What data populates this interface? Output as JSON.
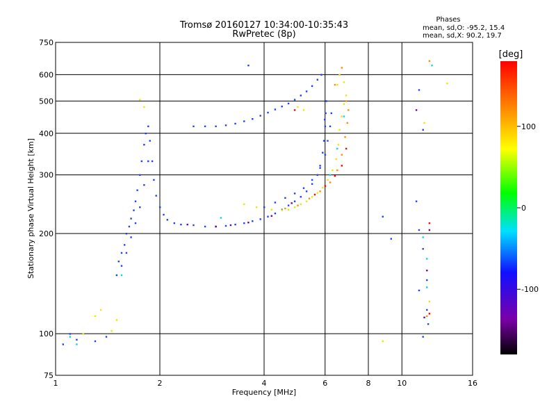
{
  "chart_data": {
    "type": "scatter",
    "title": "Tromsø 20160127 10:34:00-10:35:43",
    "subtitle": "RwPretec (8p)",
    "xlabel": "Frequency [MHz]",
    "ylabel": "Stationary phase Virtual Height [km]",
    "x_scale": "log",
    "y_scale": "log",
    "xlim": [
      1,
      16
    ],
    "ylim": [
      75,
      750
    ],
    "x_ticks": [
      1,
      2,
      4,
      6,
      8,
      10,
      16
    ],
    "y_ticks": [
      75,
      100,
      200,
      300,
      400,
      500,
      600,
      750
    ],
    "x_gridlines": [
      2,
      4,
      6,
      8,
      10
    ],
    "y_gridlines": [
      100,
      200,
      300,
      400,
      500,
      600
    ],
    "grid": true,
    "stats": {
      "header": "Phases",
      "line_o": "mean, sd,O: -95.2, 15.4",
      "line_x": "mean, sd,X: 90.2, 19.7"
    },
    "colorbar": {
      "label": "[deg]",
      "range": [
        -180,
        180
      ],
      "ticks": [
        100,
        0,
        -100
      ],
      "colormap": [
        "#000000",
        "#7a00a8",
        "#1010ff",
        "#00e0ff",
        "#00ff00",
        "#ffff00",
        "#ff8000",
        "#ff0000"
      ]
    },
    "series": [
      {
        "mode": "O",
        "color": "#1f3fff",
        "points": [
          [
            1.05,
            93
          ],
          [
            1.1,
            100
          ],
          [
            1.15,
            96
          ],
          [
            1.3,
            95
          ],
          [
            1.4,
            98
          ],
          [
            1.5,
            150
          ],
          [
            1.52,
            165
          ],
          [
            1.55,
            175
          ],
          [
            1.58,
            185
          ],
          [
            1.6,
            200
          ],
          [
            1.63,
            210
          ],
          [
            1.65,
            222
          ],
          [
            1.68,
            235
          ],
          [
            1.7,
            250
          ],
          [
            1.72,
            270
          ],
          [
            1.75,
            300
          ],
          [
            1.77,
            330
          ],
          [
            1.8,
            370
          ],
          [
            1.82,
            400
          ],
          [
            1.85,
            420
          ],
          [
            1.87,
            380
          ],
          [
            1.9,
            330
          ],
          [
            1.92,
            290
          ],
          [
            1.95,
            260
          ],
          [
            2.0,
            240
          ],
          [
            2.05,
            228
          ],
          [
            1.55,
            160
          ],
          [
            1.6,
            175
          ],
          [
            1.65,
            195
          ],
          [
            1.7,
            215
          ],
          [
            1.75,
            240
          ],
          [
            1.8,
            280
          ],
          [
            1.85,
            330
          ],
          [
            2.1,
            220
          ],
          [
            2.2,
            215
          ],
          [
            2.3,
            213
          ],
          [
            2.5,
            212
          ],
          [
            2.7,
            210
          ],
          [
            2.9,
            210
          ],
          [
            3.1,
            211
          ],
          [
            3.3,
            213
          ],
          [
            3.5,
            215
          ],
          [
            3.7,
            218
          ],
          [
            3.9,
            221
          ],
          [
            4.1,
            225
          ],
          [
            4.3,
            230
          ],
          [
            4.5,
            236
          ],
          [
            4.7,
            243
          ],
          [
            4.9,
            250
          ],
          [
            5.1,
            258
          ],
          [
            5.3,
            268
          ],
          [
            5.5,
            282
          ],
          [
            5.7,
            300
          ],
          [
            5.8,
            320
          ],
          [
            5.9,
            350
          ],
          [
            5.95,
            380
          ],
          [
            6.0,
            420
          ],
          [
            6.02,
            460
          ],
          [
            6.05,
            500
          ],
          [
            5.98,
            440
          ],
          [
            2.5,
            420
          ],
          [
            2.7,
            420
          ],
          [
            2.9,
            420
          ],
          [
            3.1,
            423
          ],
          [
            3.3,
            428
          ],
          [
            3.5,
            435
          ],
          [
            3.7,
            442
          ],
          [
            3.9,
            452
          ],
          [
            4.1,
            462
          ],
          [
            4.3,
            472
          ],
          [
            4.5,
            482
          ],
          [
            4.7,
            492
          ],
          [
            4.9,
            505
          ],
          [
            5.1,
            520
          ],
          [
            5.3,
            535
          ],
          [
            5.5,
            555
          ],
          [
            5.7,
            580
          ],
          [
            5.85,
            600
          ],
          [
            4.0,
            240
          ],
          [
            4.3,
            248
          ],
          [
            4.6,
            256
          ],
          [
            4.9,
            264
          ],
          [
            5.2,
            274
          ],
          [
            5.5,
            290
          ],
          [
            5.8,
            315
          ],
          [
            6.0,
            345
          ],
          [
            6.1,
            380
          ],
          [
            6.2,
            420
          ],
          [
            6.25,
            460
          ],
          [
            3.6,
            640
          ],
          [
            8.8,
            225
          ],
          [
            9.3,
            193
          ],
          [
            11.2,
            540
          ],
          [
            11.5,
            410
          ],
          [
            11.0,
            250
          ],
          [
            11.2,
            205
          ],
          [
            11.5,
            180
          ],
          [
            11.8,
            145
          ],
          [
            11.2,
            135
          ],
          [
            11.8,
            118
          ],
          [
            11.9,
            107
          ],
          [
            11.5,
            98
          ]
        ]
      },
      {
        "mode": "O-dark",
        "color": "#6a00b0",
        "points": [
          [
            2.4,
            213
          ],
          [
            2.9,
            210
          ],
          [
            3.2,
            212
          ],
          [
            3.6,
            216
          ],
          [
            4.2,
            226
          ],
          [
            4.8,
            247
          ],
          [
            11.0,
            470
          ],
          [
            11.8,
            155
          ],
          [
            11.6,
            112
          ],
          [
            12.0,
            205
          ]
        ]
      },
      {
        "mode": "X",
        "color": "#e8e800",
        "points": [
          [
            1.75,
            505
          ],
          [
            1.8,
            480
          ],
          [
            1.3,
            113
          ],
          [
            1.35,
            118
          ],
          [
            1.45,
            102
          ],
          [
            1.5,
            110
          ],
          [
            1.2,
            100
          ],
          [
            3.5,
            245
          ],
          [
            3.8,
            240
          ],
          [
            4.2,
            236
          ],
          [
            4.5,
            235
          ],
          [
            4.7,
            236
          ],
          [
            4.9,
            240
          ],
          [
            5.1,
            245
          ],
          [
            5.3,
            250
          ],
          [
            5.5,
            258
          ],
          [
            5.7,
            265
          ],
          [
            5.9,
            275
          ],
          [
            6.1,
            290
          ],
          [
            6.3,
            310
          ],
          [
            6.45,
            335
          ],
          [
            6.55,
            370
          ],
          [
            6.6,
            410
          ],
          [
            6.7,
            450
          ],
          [
            6.8,
            490
          ],
          [
            6.9,
            520
          ],
          [
            5.0,
            480
          ],
          [
            5.2,
            470
          ],
          [
            6.5,
            560
          ],
          [
            6.8,
            570
          ],
          [
            6.6,
            600
          ],
          [
            8.8,
            95
          ],
          [
            11.6,
            430
          ],
          [
            12.0,
            125
          ],
          [
            13.5,
            565
          ]
        ]
      },
      {
        "mode": "X-orange",
        "color": "#ff8c00",
        "points": [
          [
            4.6,
            238
          ],
          [
            5.0,
            243
          ],
          [
            5.4,
            255
          ],
          [
            5.8,
            268
          ],
          [
            6.2,
            285
          ],
          [
            6.5,
            310
          ],
          [
            6.7,
            345
          ],
          [
            6.85,
            390
          ],
          [
            6.95,
            430
          ],
          [
            7.0,
            470
          ],
          [
            6.9,
            500
          ],
          [
            6.4,
            560
          ],
          [
            6.7,
            630
          ],
          [
            12.0,
            660
          ],
          [
            11.8,
            113
          ]
        ]
      },
      {
        "mode": "X-red",
        "color": "#ff0000",
        "points": [
          [
            5.6,
            262
          ],
          [
            6.0,
            278
          ],
          [
            6.4,
            298
          ],
          [
            6.7,
            320
          ],
          [
            6.9,
            360
          ],
          [
            4.9,
            470
          ],
          [
            12.0,
            215
          ],
          [
            12.0,
            115
          ]
        ]
      },
      {
        "mode": "green-cyan",
        "color": "#00d8e8",
        "points": [
          [
            1.55,
            150
          ],
          [
            1.1,
            98
          ],
          [
            1.15,
            93
          ],
          [
            3.0,
            223
          ],
          [
            6.2,
            300
          ],
          [
            6.5,
            360
          ],
          [
            6.8,
            450
          ],
          [
            12.2,
            640
          ],
          [
            11.5,
            195
          ],
          [
            11.8,
            138
          ],
          [
            11.8,
            168
          ]
        ]
      }
    ]
  }
}
